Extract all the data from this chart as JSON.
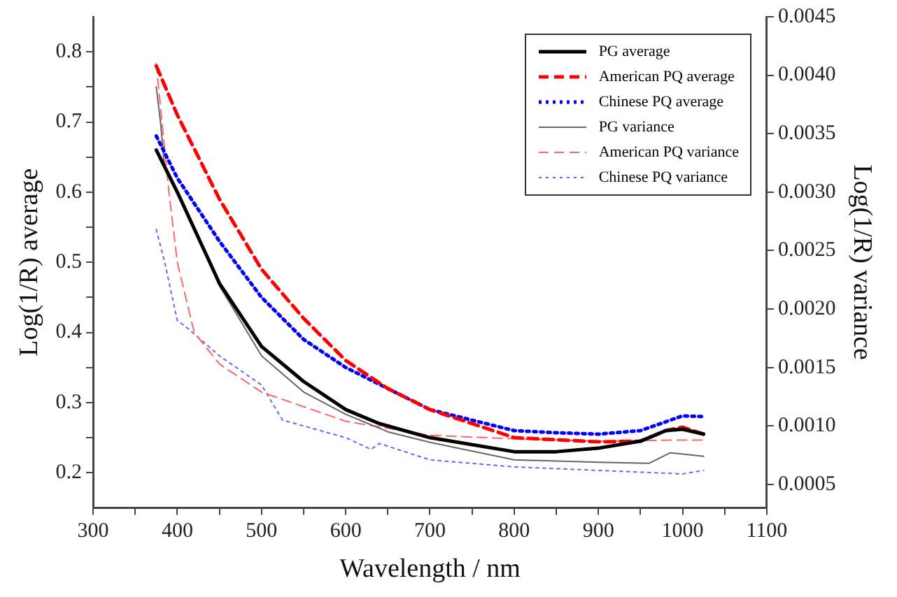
{
  "chart_data": {
    "type": "line",
    "xlabel": "Wavelength / nm",
    "ylabel": "Log(1/R) average",
    "y2label": "Log(1/R) variance",
    "xlim": [
      300,
      1100
    ],
    "xticks": [
      300,
      {
        "value": 350,
        "label": null
      },
      400,
      {
        "value": 450,
        "label": null
      },
      500,
      {
        "value": 550,
        "label": null
      },
      600,
      {
        "value": 650,
        "label": null
      },
      700,
      {
        "value": 750,
        "label": null
      },
      800,
      {
        "value": 850,
        "label": null
      },
      900,
      {
        "value": 950,
        "label": null
      },
      1000,
      {
        "value": 1050,
        "label": null
      },
      1100
    ],
    "ylim": [
      0.15,
      0.85
    ],
    "yticks": [
      0.2,
      {
        "value": 0.25,
        "label": null
      },
      0.3,
      {
        "value": 0.35,
        "label": null
      },
      0.4,
      {
        "value": 0.45,
        "label": null
      },
      0.5,
      {
        "value": 0.55,
        "label": null
      },
      0.6,
      {
        "value": 0.65,
        "label": null
      },
      0.7,
      {
        "value": 0.75,
        "label": null
      },
      0.8
    ],
    "y2lim": [
      0.0003,
      0.0045
    ],
    "y2ticks": [
      0.0005,
      {
        "value": 0.001,
        "label": "0.0010"
      },
      0.0015,
      {
        "value": 0.002,
        "label": "0.0020"
      },
      0.0025,
      {
        "value": 0.003,
        "label": "0.0030"
      },
      0.0035,
      {
        "value": 0.004,
        "label": "0.0040"
      },
      0.0045
    ],
    "grid": false,
    "legend": "top right",
    "marker": "none",
    "series": [
      {
        "name": "PG average",
        "color": "#000000",
        "line_style": "solid",
        "x": [
          375,
          400,
          450,
          500,
          550,
          600,
          640,
          700,
          800,
          850,
          900,
          950,
          980,
          1000,
          1025
        ],
        "values": [
          0.66,
          0.6,
          0.47,
          0.38,
          0.33,
          0.29,
          0.27,
          0.25,
          0.23,
          0.23,
          0.235,
          0.245,
          0.26,
          0.262,
          0.255
        ]
      },
      {
        "name": "American PQ average",
        "color": "#ff0000",
        "line_style": "dashed",
        "x": [
          375,
          400,
          450,
          500,
          550,
          600,
          650,
          700,
          750,
          800,
          850,
          900,
          950,
          980,
          1000,
          1025
        ],
        "values": [
          0.78,
          0.71,
          0.59,
          0.49,
          0.42,
          0.36,
          0.32,
          0.29,
          0.27,
          0.25,
          0.247,
          0.244,
          0.245,
          0.26,
          0.265,
          0.255
        ]
      },
      {
        "name": "Chinese PQ average",
        "color": "#0000ff",
        "line_style": "dotted",
        "x": [
          375,
          400,
          450,
          500,
          550,
          600,
          650,
          700,
          750,
          800,
          850,
          900,
          950,
          1000,
          1025
        ],
        "values": [
          0.68,
          0.62,
          0.53,
          0.45,
          0.39,
          0.35,
          0.32,
          0.29,
          0.275,
          0.26,
          0.257,
          0.255,
          0.26,
          0.281,
          0.28
        ]
      },
      {
        "name": "PG variance",
        "color": "#666666",
        "line_style": "solid",
        "axis": "y2",
        "x": [
          375,
          380,
          385,
          400,
          450,
          500,
          550,
          600,
          650,
          700,
          800,
          900,
          960,
          985,
          1000,
          1025
        ],
        "values": [
          0.0039,
          0.0036,
          0.0032,
          0.003,
          0.0022,
          0.0016,
          0.00129,
          0.0011,
          0.00095,
          0.00086,
          0.00071,
          0.00069,
          0.00068,
          0.00077,
          0.00076,
          0.00074
        ]
      },
      {
        "name": "American PQ variance",
        "color": "#ff6666",
        "line_style": "dashed",
        "axis": "y2",
        "x": [
          375,
          390,
          400,
          420,
          450,
          500,
          600,
          700,
          800,
          900,
          1000,
          1025
        ],
        "values": [
          0.0041,
          0.003,
          0.0024,
          0.0018,
          0.00153,
          0.00129,
          0.00104,
          0.00092,
          0.00089,
          0.00087,
          0.00088,
          0.00088
        ]
      },
      {
        "name": "Chinese PQ variance",
        "color": "#6666ff",
        "line_style": "dotted",
        "axis": "y2",
        "x": [
          375,
          385,
          400,
          410,
          450,
          500,
          525,
          600,
          630,
          640,
          700,
          800,
          900,
          1000,
          1025
        ],
        "values": [
          0.00268,
          0.0024,
          0.0019,
          0.00185,
          0.0016,
          0.00135,
          0.00105,
          0.0009,
          0.0008,
          0.00085,
          0.00071,
          0.00065,
          0.00062,
          0.00059,
          0.00062
        ]
      }
    ]
  }
}
